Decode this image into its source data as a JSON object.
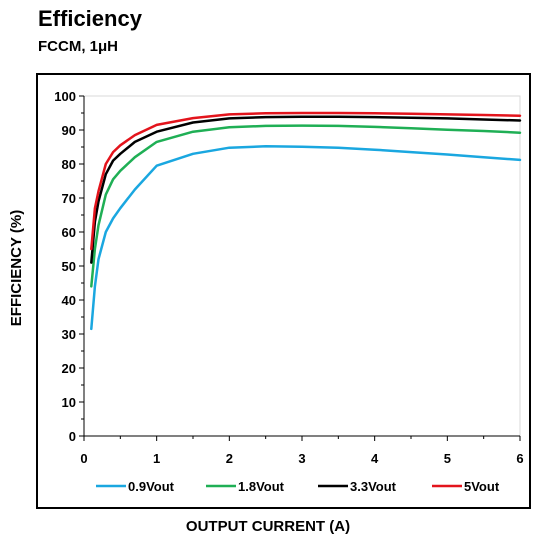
{
  "header": {
    "title": "Efficiency",
    "subtitle": "FCCM, 1μH"
  },
  "chart_data": {
    "type": "line",
    "title": "Efficiency",
    "subtitle": "FCCM, 1μH",
    "xlabel": "OUTPUT CURRENT (A)",
    "ylabel": "EFFICIENCY (%)",
    "xlim": [
      0,
      6
    ],
    "ylim": [
      0,
      100
    ],
    "xticks": [
      0,
      1,
      2,
      3,
      4,
      5,
      6
    ],
    "yticks": [
      0,
      10,
      20,
      30,
      40,
      50,
      60,
      70,
      80,
      90,
      100
    ],
    "grid": false,
    "legend": "bottom",
    "series": [
      {
        "name": "0.9Vout",
        "color": "#1aa7e0",
        "x": [
          0.1,
          0.15,
          0.2,
          0.3,
          0.4,
          0.5,
          0.7,
          1.0,
          1.5,
          2.0,
          2.5,
          3.0,
          3.5,
          4.0,
          4.5,
          5.0,
          5.5,
          6.0
        ],
        "y": [
          31.5,
          44,
          52,
          60,
          64,
          67,
          72.5,
          79.5,
          83,
          84.8,
          85.2,
          85.1,
          84.8,
          84.2,
          83.5,
          82.8,
          82,
          81.2
        ]
      },
      {
        "name": "1.8Vout",
        "color": "#1faf55",
        "x": [
          0.1,
          0.15,
          0.2,
          0.3,
          0.4,
          0.5,
          0.7,
          1.0,
          1.5,
          2.0,
          2.5,
          3.0,
          3.5,
          4.0,
          4.5,
          5.0,
          5.5,
          6.0
        ],
        "y": [
          44,
          55,
          62,
          71,
          75.5,
          78,
          82,
          86.5,
          89.5,
          90.8,
          91.2,
          91.3,
          91.2,
          90.9,
          90.5,
          90.1,
          89.7,
          89.2
        ]
      },
      {
        "name": "3.3Vout",
        "color": "#000000",
        "x": [
          0.1,
          0.15,
          0.2,
          0.3,
          0.4,
          0.5,
          0.7,
          1.0,
          1.5,
          2.0,
          2.5,
          3.0,
          3.5,
          4.0,
          4.5,
          5.0,
          5.5,
          6.0
        ],
        "y": [
          51,
          63,
          69,
          77,
          81,
          83,
          86.5,
          89.5,
          92.2,
          93.4,
          93.8,
          93.9,
          93.9,
          93.8,
          93.6,
          93.4,
          93.1,
          92.8
        ]
      },
      {
        "name": "5Vout",
        "color": "#e3141c",
        "x": [
          0.1,
          0.15,
          0.2,
          0.3,
          0.4,
          0.5,
          0.7,
          1.0,
          1.5,
          2.0,
          2.5,
          3.0,
          3.5,
          4.0,
          4.5,
          5.0,
          5.5,
          6.0
        ],
        "y": [
          55,
          67,
          72,
          80,
          83.5,
          85.5,
          88.5,
          91.5,
          93.5,
          94.6,
          94.9,
          95,
          95,
          94.9,
          94.8,
          94.6,
          94.4,
          94.2
        ]
      }
    ]
  }
}
